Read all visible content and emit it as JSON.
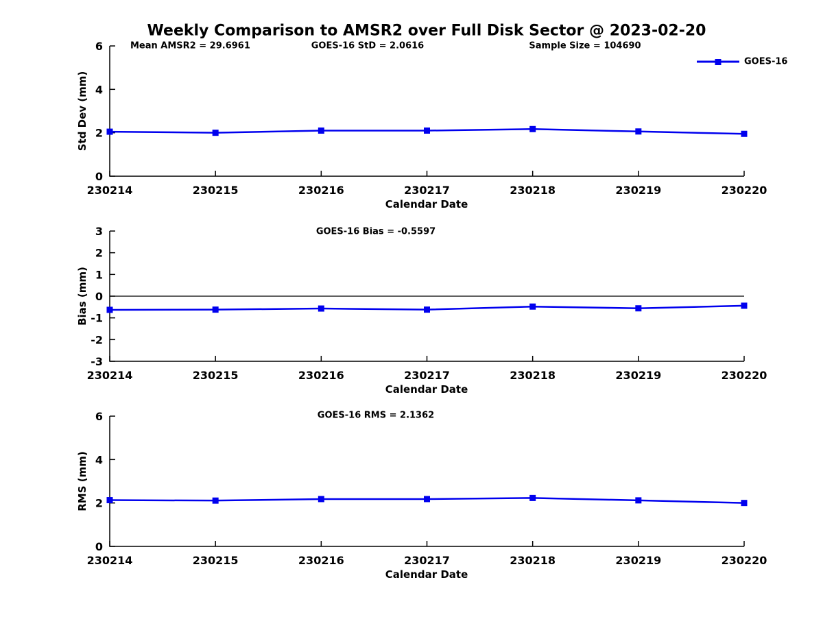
{
  "figure": {
    "title": "Weekly Comparison to AMSR2 over Full Disk Sector @ 2023-02-20",
    "background_color": "#ffffff",
    "text_color": "#000000",
    "accent_color": "#0000ee"
  },
  "annotations": [
    {
      "text": "Mean AMSR2 = 29.6961"
    },
    {
      "text": "GOES-16 StD = 2.0616"
    },
    {
      "text": "Sample Size = 104690"
    }
  ],
  "legend": {
    "label": "GOES-16",
    "color": "#0000ee",
    "marker": "square",
    "position": "top-right"
  },
  "chart_data": [
    {
      "type": "line",
      "name": "std-dev-subplot",
      "subplot_title": "",
      "categories": [
        "230214",
        "230215",
        "230216",
        "230217",
        "230218",
        "230219",
        "230220"
      ],
      "series": [
        {
          "name": "GOES-16",
          "color": "#0000ee",
          "marker": "square",
          "values": [
            2.05,
            2.0,
            2.1,
            2.1,
            2.17,
            2.06,
            1.95
          ]
        }
      ],
      "xlabel": "Calendar Date",
      "ylabel": "Std Dev (mm)",
      "ylim": [
        0,
        6
      ],
      "yticks": [
        0,
        2,
        4,
        6
      ],
      "zero_line": false,
      "grid": false,
      "legend_position": "top-right"
    },
    {
      "type": "line",
      "name": "bias-subplot",
      "subplot_title": "GOES-16 Bias  = -0.5597",
      "categories": [
        "230214",
        "230215",
        "230216",
        "230217",
        "230218",
        "230219",
        "230220"
      ],
      "series": [
        {
          "name": "GOES-16",
          "color": "#0000ee",
          "marker": "square",
          "values": [
            -0.63,
            -0.62,
            -0.57,
            -0.62,
            -0.48,
            -0.56,
            -0.44
          ]
        }
      ],
      "xlabel": "Calendar Date",
      "ylabel": "Bias (mm)",
      "ylim": [
        -3,
        3
      ],
      "yticks": [
        3,
        2,
        1,
        0,
        -1,
        -2,
        -3
      ],
      "zero_line": true,
      "grid": false
    },
    {
      "type": "line",
      "name": "rms-subplot",
      "subplot_title": "GOES-16 RMS = 2.1362",
      "categories": [
        "230214",
        "230215",
        "230216",
        "230217",
        "230218",
        "230219",
        "230220"
      ],
      "series": [
        {
          "name": "GOES-16",
          "color": "#0000ee",
          "marker": "square",
          "values": [
            2.13,
            2.11,
            2.18,
            2.18,
            2.23,
            2.12,
            2.0
          ]
        }
      ],
      "xlabel": "Calendar Date",
      "ylabel": "RMS (mm)",
      "ylim": [
        0,
        6
      ],
      "yticks": [
        0,
        2,
        4,
        6
      ],
      "zero_line": false,
      "grid": false
    }
  ]
}
